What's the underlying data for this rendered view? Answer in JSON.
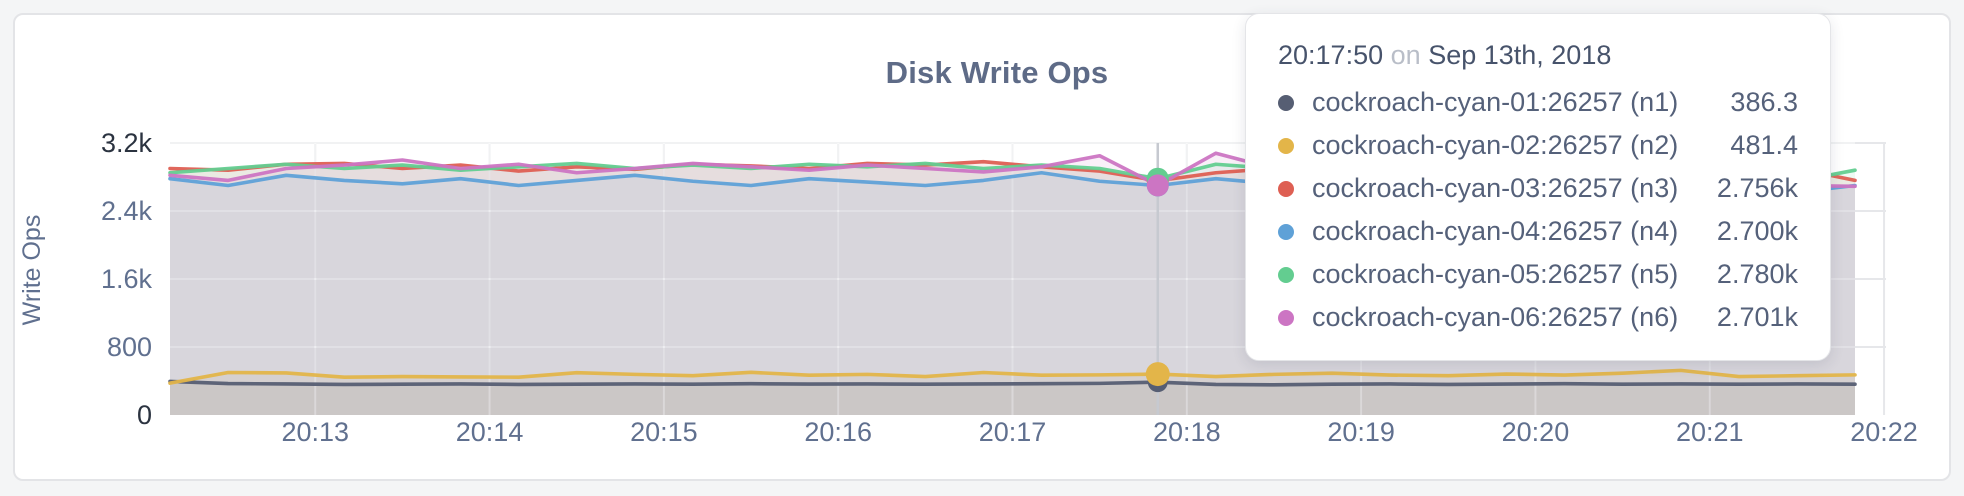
{
  "panel": {
    "background": "#ffffff",
    "accent_text_color": "#5e6b87"
  },
  "chart_data": {
    "type": "line",
    "title": "Disk Write Ops",
    "ylabel": "Write Ops",
    "xlabel": "",
    "ylim": [
      0,
      3200
    ],
    "grid": true,
    "legend_position": "tooltip-only",
    "y_ticks": [
      {
        "label": "0",
        "value": 0,
        "dark": true
      },
      {
        "label": "800",
        "value": 800,
        "dark": false
      },
      {
        "label": "1.6k",
        "value": 1600,
        "dark": false
      },
      {
        "label": "2.4k",
        "value": 2400,
        "dark": false
      },
      {
        "label": "3.2k",
        "value": 3200,
        "dark": true
      }
    ],
    "x_ticks": [
      "20:13",
      "20:14",
      "20:15",
      "20:16",
      "20:17",
      "20:18",
      "20:19",
      "20:20",
      "20:21",
      "20:22"
    ],
    "x_start": "20:12:10",
    "x_step_seconds": 20,
    "hover_index": 17,
    "hover_time": "20:17:50",
    "series": [
      {
        "name": "cockroach-cyan-01:26257 (n1)",
        "color": "#565e73",
        "values": [
          395,
          370,
          365,
          360,
          362,
          365,
          360,
          363,
          366,
          362,
          368,
          364,
          366,
          362,
          365,
          368,
          372,
          386.3,
          360,
          355,
          362,
          365,
          360,
          364,
          368,
          362,
          366,
          363,
          365,
          362
        ]
      },
      {
        "name": "cockroach-cyan-02:26257 (n2)",
        "color": "#e3b549",
        "values": [
          375,
          500,
          495,
          445,
          452,
          448,
          445,
          498,
          478,
          462,
          502,
          468,
          478,
          452,
          500,
          468,
          472,
          481.4,
          452,
          478,
          492,
          470,
          462,
          482,
          470,
          492,
          525,
          452,
          462,
          472
        ]
      },
      {
        "name": "cockroach-cyan-03:26257 (n3)",
        "color": "#de5f53",
        "values": [
          2900,
          2880,
          2950,
          2960,
          2900,
          2940,
          2870,
          2920,
          2890,
          2950,
          2930,
          2900,
          2960,
          2940,
          2980,
          2920,
          2870,
          2756,
          2850,
          2900,
          2930,
          2890,
          2940,
          2900,
          2860,
          2910,
          2890,
          2930,
          2900,
          2760
        ]
      },
      {
        "name": "cockroach-cyan-04:26257 (n4)",
        "color": "#5fa1d7",
        "values": [
          2780,
          2700,
          2820,
          2760,
          2720,
          2780,
          2700,
          2760,
          2820,
          2750,
          2700,
          2780,
          2740,
          2700,
          2760,
          2850,
          2750,
          2700,
          2780,
          2720,
          2760,
          2700,
          2740,
          2780,
          2700,
          2720,
          2760,
          2700,
          2620,
          2700
        ]
      },
      {
        "name": "cockroach-cyan-05:26257 (n5)",
        "color": "#63cd90",
        "values": [
          2850,
          2900,
          2950,
          2900,
          2940,
          2880,
          2920,
          2960,
          2900,
          2940,
          2900,
          2950,
          2920,
          2960,
          2900,
          2940,
          2900,
          2780,
          2950,
          2900,
          2940,
          2960,
          2900,
          2940,
          2900,
          2860,
          2920,
          2600,
          2750,
          2880
        ]
      },
      {
        "name": "cockroach-cyan-06:26257 (n6)",
        "color": "#cc75c3",
        "values": [
          2820,
          2760,
          2900,
          2940,
          3000,
          2900,
          2950,
          2850,
          2900,
          2960,
          2920,
          2880,
          2940,
          2900,
          2860,
          2920,
          3050,
          2701,
          3080,
          2900,
          2840,
          2900,
          2860,
          2900,
          2940,
          2900,
          2960,
          2900,
          2700,
          2690
        ]
      }
    ]
  },
  "tooltip": {
    "time": "20:17:50",
    "on_word": "on",
    "date": "Sep 13th, 2018",
    "rows": [
      {
        "name": "cockroach-cyan-01:26257 (n1)",
        "value": "386.3",
        "color": "#565e73"
      },
      {
        "name": "cockroach-cyan-02:26257 (n2)",
        "value": "481.4",
        "color": "#e3b549"
      },
      {
        "name": "cockroach-cyan-03:26257 (n3)",
        "value": "2.756k",
        "color": "#de5f53"
      },
      {
        "name": "cockroach-cyan-04:26257 (n4)",
        "value": "2.700k",
        "color": "#5fa1d7"
      },
      {
        "name": "cockroach-cyan-05:26257 (n5)",
        "value": "2.780k",
        "color": "#63cd90"
      },
      {
        "name": "cockroach-cyan-06:26257 (n6)",
        "value": "2.701k",
        "color": "#cc75c3"
      }
    ]
  }
}
